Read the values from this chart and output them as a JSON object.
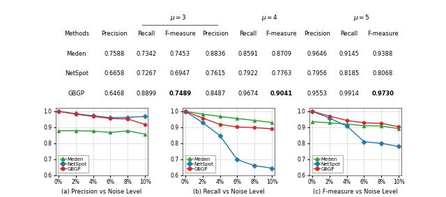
{
  "noise_levels": [
    0,
    2,
    4,
    6,
    8,
    10
  ],
  "noise_labels": [
    "0%",
    "2%",
    "4%",
    "6%",
    "8%",
    "10%"
  ],
  "precision": {
    "Meden": [
      0.878,
      0.879,
      0.876,
      0.868,
      0.878,
      0.857
    ],
    "NetSpot": [
      1.0,
      0.985,
      0.972,
      0.96,
      0.962,
      0.968
    ],
    "GBGP": [
      1.0,
      0.982,
      0.968,
      0.955,
      0.952,
      0.918
    ]
  },
  "recall": {
    "Meden": [
      1.0,
      0.982,
      0.968,
      0.955,
      0.943,
      0.93
    ],
    "NetSpot": [
      1.0,
      0.93,
      0.848,
      0.698,
      0.66,
      0.645
    ],
    "GBGP": [
      1.0,
      0.958,
      0.918,
      0.902,
      0.898,
      0.89
    ]
  },
  "fmeasure": {
    "Meden": [
      0.935,
      0.928,
      0.92,
      0.91,
      0.908,
      0.892
    ],
    "NetSpot": [
      1.0,
      0.958,
      0.908,
      0.81,
      0.8,
      0.78
    ],
    "GBGP": [
      1.0,
      0.97,
      0.943,
      0.928,
      0.925,
      0.903
    ]
  },
  "table": {
    "mu3": {
      "Meden": [
        0.7588,
        0.7342,
        0.7453
      ],
      "NetSpot": [
        0.6658,
        0.7267,
        0.6947
      ],
      "GBGP": [
        0.6468,
        0.8899,
        0.7489
      ]
    },
    "mu4": {
      "Meden": [
        0.8836,
        0.8591,
        0.8709
      ],
      "NetSpot": [
        0.7615,
        0.7922,
        0.7763
      ],
      "GBGP": [
        0.8487,
        0.9674,
        0.9041
      ]
    },
    "mu5": {
      "Meden": [
        0.9646,
        0.9145,
        0.9388
      ],
      "NetSpot": [
        0.7956,
        0.8185,
        0.8068
      ],
      "GBGP": [
        0.9553,
        0.9914,
        0.973
      ]
    }
  },
  "colors": {
    "Meden": "#2ca02c",
    "NetSpot": "#1f77b4",
    "GBGP": "#d62728"
  },
  "markers": {
    "Meden": "^",
    "NetSpot": "D",
    "GBGP": "o"
  }
}
